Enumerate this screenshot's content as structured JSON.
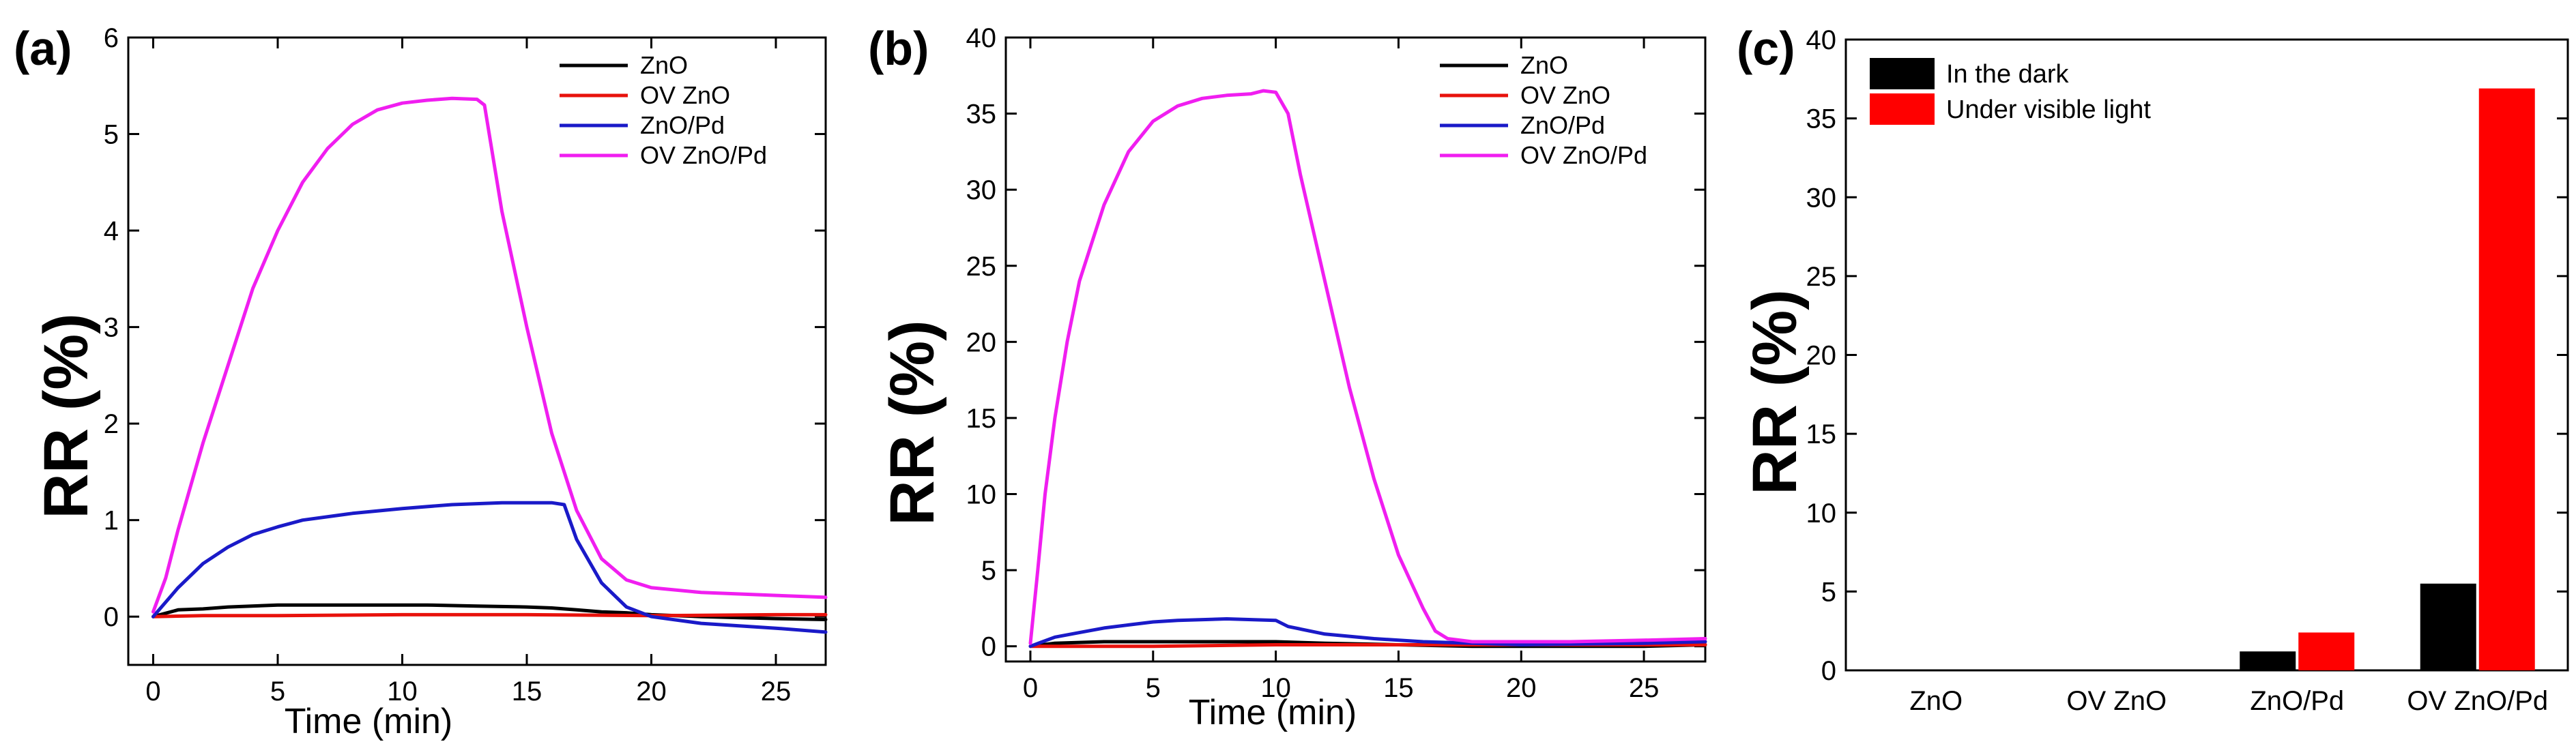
{
  "figure": {
    "panels": [
      {
        "id": "a",
        "panel_label": "(a)",
        "chart_type": "line",
        "xlabel": "Time (min)",
        "ylabel": "RR (%)",
        "xlim": [
          -1,
          27
        ],
        "ylim": [
          -0.5,
          6
        ],
        "xticks": [
          0,
          5,
          10,
          15,
          20,
          25
        ],
        "xtick_labels": [
          "0",
          "5",
          "10",
          "15",
          "20",
          "25"
        ],
        "yticks": [
          0,
          1,
          2,
          3,
          4,
          5,
          6
        ],
        "ytick_labels": [
          "0",
          "1",
          "2",
          "3",
          "4",
          "5",
          "6"
        ],
        "legend": "top-right",
        "series": [
          {
            "name": "ZnO",
            "color": "#000000",
            "x": [
              0,
              1,
              2,
              3,
              5,
              8,
              11,
              13,
              15,
              16,
              17,
              18,
              19,
              20,
              22,
              25,
              27
            ],
            "y": [
              0.0,
              0.07,
              0.08,
              0.1,
              0.12,
              0.12,
              0.12,
              0.11,
              0.1,
              0.09,
              0.07,
              0.05,
              0.04,
              0.02,
              0.0,
              -0.02,
              -0.03
            ]
          },
          {
            "name": "OV ZnO",
            "color": "#e8120c",
            "x": [
              0,
              2,
              5,
              10,
              15,
              20,
              25,
              27
            ],
            "y": [
              0.0,
              0.01,
              0.01,
              0.02,
              0.02,
              0.01,
              0.02,
              0.02
            ]
          },
          {
            "name": "ZnO/Pd",
            "color": "#1a1ac8",
            "x": [
              0,
              0.5,
              1,
              2,
              3,
              4,
              5,
              6,
              8,
              10,
              12,
              14,
              16,
              16.5,
              17,
              18,
              19,
              20,
              22,
              25,
              27
            ],
            "y": [
              0.0,
              0.15,
              0.3,
              0.55,
              0.72,
              0.85,
              0.93,
              1.0,
              1.07,
              1.12,
              1.16,
              1.18,
              1.18,
              1.16,
              0.8,
              0.35,
              0.1,
              0.0,
              -0.07,
              -0.12,
              -0.16
            ]
          },
          {
            "name": "OV ZnO/Pd",
            "color": "#f01ef0",
            "x": [
              0,
              0.5,
              1,
              2,
              3,
              4,
              5,
              6,
              7,
              8,
              9,
              10,
              11,
              12,
              13,
              13.3,
              14,
              15,
              16,
              17,
              18,
              19,
              20,
              22,
              25,
              27
            ],
            "y": [
              0.05,
              0.4,
              0.9,
              1.8,
              2.6,
              3.4,
              4.0,
              4.5,
              4.85,
              5.1,
              5.25,
              5.32,
              5.35,
              5.37,
              5.36,
              5.3,
              4.2,
              3.0,
              1.9,
              1.1,
              0.6,
              0.38,
              0.3,
              0.25,
              0.22,
              0.2
            ]
          }
        ]
      },
      {
        "id": "b",
        "panel_label": "(b)",
        "chart_type": "line",
        "xlabel": "Time (min)",
        "ylabel": "RR (%)",
        "xlim": [
          -1,
          27.5
        ],
        "ylim": [
          -1,
          40
        ],
        "xticks": [
          0,
          5,
          10,
          15,
          20,
          25
        ],
        "xtick_labels": [
          "0",
          "5",
          "10",
          "15",
          "20",
          "25"
        ],
        "yticks": [
          0,
          5,
          10,
          15,
          20,
          25,
          30,
          35,
          40
        ],
        "ytick_labels": [
          "0",
          "5",
          "10",
          "15",
          "20",
          "25",
          "30",
          "35",
          "40"
        ],
        "legend": "top-right",
        "series": [
          {
            "name": "ZnO",
            "color": "#000000",
            "x": [
              0,
              1,
              3,
              5,
              8,
              10,
              12,
              15,
              18,
              20,
              25,
              27.5
            ],
            "y": [
              0.0,
              0.2,
              0.3,
              0.3,
              0.3,
              0.3,
              0.2,
              0.1,
              0.0,
              0.0,
              0.0,
              0.1
            ]
          },
          {
            "name": "OV ZnO",
            "color": "#e8120c",
            "x": [
              0,
              5,
              10,
              15,
              20,
              25,
              27.5
            ],
            "y": [
              0.0,
              0.0,
              0.1,
              0.1,
              0.1,
              0.1,
              0.1
            ]
          },
          {
            "name": "ZnO/Pd",
            "color": "#1a1ac8",
            "x": [
              0,
              1,
              2,
              3,
              4,
              5,
              6,
              8,
              10,
              10.5,
              12,
              14,
              16,
              18,
              20,
              25,
              27.5
            ],
            "y": [
              0.0,
              0.6,
              0.9,
              1.2,
              1.4,
              1.6,
              1.7,
              1.8,
              1.7,
              1.3,
              0.8,
              0.5,
              0.3,
              0.2,
              0.1,
              0.2,
              0.3
            ]
          },
          {
            "name": "OV ZnO/Pd",
            "color": "#f01ef0",
            "x": [
              0,
              0.3,
              0.6,
              1,
              1.5,
              2,
              3,
              4,
              5,
              6,
              7,
              8,
              9,
              9.5,
              10,
              10.5,
              11,
              12,
              13,
              14,
              15,
              16,
              16.5,
              17,
              18,
              20,
              22,
              25,
              27.5
            ],
            "y": [
              0.2,
              5,
              10,
              15,
              20,
              24,
              29,
              32.5,
              34.5,
              35.5,
              36.0,
              36.2,
              36.3,
              36.5,
              36.4,
              35,
              31,
              24,
              17,
              11,
              6,
              2.5,
              1.0,
              0.5,
              0.3,
              0.3,
              0.3,
              0.4,
              0.5
            ]
          }
        ]
      },
      {
        "id": "c",
        "panel_label": "(c)",
        "chart_type": "bar",
        "ylabel": "RR (%)",
        "ylim": [
          0,
          40
        ],
        "yticks": [
          0,
          5,
          10,
          15,
          20,
          25,
          30,
          35,
          40
        ],
        "ytick_labels": [
          "0",
          "5",
          "10",
          "15",
          "20",
          "25",
          "30",
          "35",
          "40"
        ],
        "categories": [
          "ZnO",
          "OV ZnO",
          "ZnO/Pd",
          "OV ZnO/Pd"
        ],
        "legend": "top-left",
        "series": [
          {
            "name": "In the dark",
            "color": "#000000",
            "values": [
              0,
              0,
              1.2,
              5.5
            ]
          },
          {
            "name": "Under visible light",
            "color": "#ff0000",
            "values": [
              0,
              0,
              2.4,
              36.9
            ]
          }
        ]
      }
    ]
  }
}
